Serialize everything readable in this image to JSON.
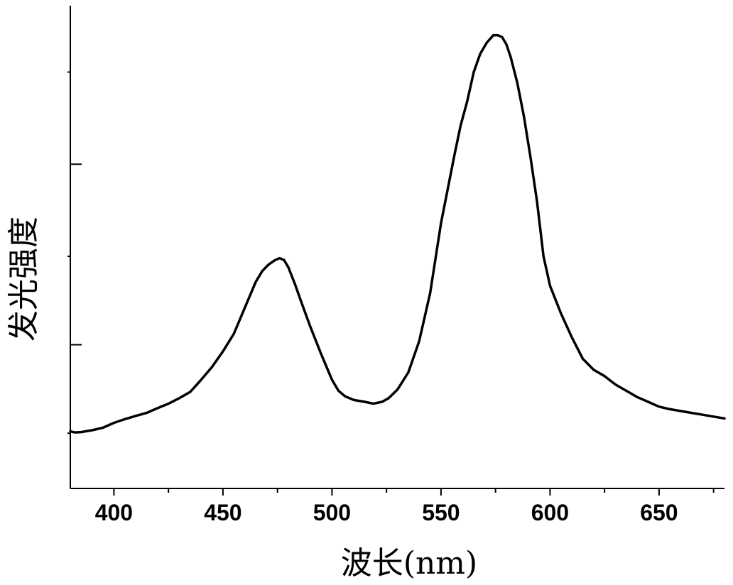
{
  "chart_data": {
    "type": "line",
    "title": "",
    "xlabel": "波长(nm)",
    "ylabel": "发光强度",
    "xlim": [
      380,
      680
    ],
    "ylim": [
      0,
      1.21
    ],
    "x_ticks": [
      400,
      450,
      500,
      550,
      600,
      650
    ],
    "x_minor_ticks": [
      375,
      425,
      475,
      525,
      575,
      625,
      675
    ],
    "y_ticks": [
      0.39,
      0.88
    ],
    "y_minor_ticks": [
      0.15,
      0.63,
      1.13
    ],
    "grid": false,
    "legend": "none",
    "line_color": "#000000",
    "series": [
      {
        "x": [
          380,
          382,
          385,
          390,
          395,
          400,
          405,
          410,
          415,
          420,
          425,
          430,
          435,
          440,
          445,
          450,
          455,
          460,
          465,
          468,
          471,
          474,
          476,
          478,
          480,
          483,
          486,
          490,
          495,
          500,
          503,
          506,
          510,
          515,
          519,
          523,
          526,
          530,
          535,
          540,
          545,
          550,
          553,
          556,
          559,
          562,
          565,
          568,
          571,
          574,
          576,
          578,
          580,
          582,
          585,
          588,
          591,
          594,
          597,
          600,
          605,
          610,
          615,
          620,
          625,
          630,
          635,
          640,
          645,
          650,
          655,
          660,
          665,
          670,
          675,
          680
        ],
        "y": [
          0.155,
          0.152,
          0.153,
          0.158,
          0.165,
          0.178,
          0.188,
          0.197,
          0.205,
          0.218,
          0.23,
          0.245,
          0.262,
          0.295,
          0.33,
          0.372,
          0.42,
          0.49,
          0.56,
          0.59,
          0.608,
          0.62,
          0.625,
          0.62,
          0.6,
          0.555,
          0.505,
          0.44,
          0.365,
          0.295,
          0.265,
          0.25,
          0.24,
          0.235,
          0.23,
          0.235,
          0.245,
          0.268,
          0.315,
          0.4,
          0.53,
          0.72,
          0.81,
          0.9,
          0.985,
          1.05,
          1.13,
          1.18,
          1.21,
          1.23,
          1.23,
          1.225,
          1.205,
          1.17,
          1.1,
          1.01,
          0.9,
          0.78,
          0.63,
          0.55,
          0.475,
          0.41,
          0.352,
          0.322,
          0.305,
          0.282,
          0.265,
          0.248,
          0.235,
          0.222,
          0.215,
          0.21,
          0.205,
          0.2,
          0.195,
          0.19
        ]
      }
    ]
  }
}
